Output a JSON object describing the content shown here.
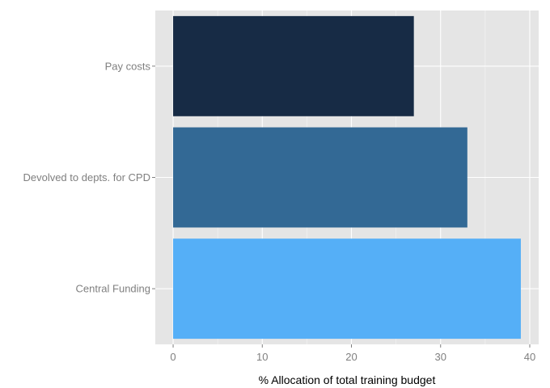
{
  "chart_data": {
    "type": "bar",
    "orientation": "horizontal",
    "categories": [
      "Pay costs",
      "Devolved to depts. for CPD",
      "Central Funding"
    ],
    "values": [
      27,
      33,
      39
    ],
    "colors": [
      "#172b45",
      "#336995",
      "#55aff7"
    ],
    "title": "",
    "xlabel": "% Allocation of total training budget",
    "ylabel": "",
    "xlim": [
      -2,
      41
    ],
    "xticks": [
      0,
      10,
      20,
      30,
      40
    ],
    "grid": true,
    "panel_background": "#e5e5e5",
    "grid_color": "#ffffff",
    "legend": "none"
  }
}
